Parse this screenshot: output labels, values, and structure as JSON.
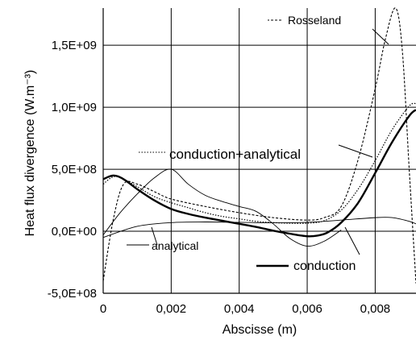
{
  "chart_data": {
    "type": "line",
    "xlabel": "Abscisse (m)",
    "ylabel": "Heat flux divergence (W.m⁻³)",
    "xlim": [
      0,
      0.0092
    ],
    "ylim": [
      -500000000,
      1800000000
    ],
    "x_ticks": [
      0,
      0.002,
      0.004,
      0.006,
      0.008
    ],
    "x_tick_labels": [
      "0",
      "0,002",
      "0,004",
      "0,006",
      "0,008"
    ],
    "y_ticks": [
      -500000000,
      0,
      500000000,
      1000000000,
      1500000000
    ],
    "y_tick_labels": [
      "-5,0E+08",
      "0,0E+00",
      "5,0E+08",
      "1,0E+09",
      "1,5E+09"
    ],
    "grid": true,
    "series": [
      {
        "name": "conduction",
        "style": "thick-solid",
        "x": [
          0,
          0.0003,
          0.0006,
          0.001,
          0.0015,
          0.002,
          0.0025,
          0.003,
          0.0035,
          0.004,
          0.0045,
          0.005,
          0.0055,
          0.006,
          0.0063,
          0.0066,
          0.007,
          0.0075,
          0.008,
          0.0085,
          0.009,
          0.0092
        ],
        "y": [
          420000000,
          450000000,
          420000000,
          340000000,
          250000000,
          180000000,
          140000000,
          110000000,
          85000000,
          60000000,
          35000000,
          5000000,
          -20000000,
          -40000000,
          -35000000,
          -10000000,
          70000000,
          230000000,
          470000000,
          720000000,
          930000000,
          980000000
        ]
      },
      {
        "name": "conduction+analytical",
        "style": "dotted",
        "x": [
          0,
          0.0003,
          0.0006,
          0.001,
          0.0015,
          0.002,
          0.0025,
          0.003,
          0.0035,
          0.004,
          0.0045,
          0.005,
          0.0055,
          0.006,
          0.0065,
          0.007,
          0.0075,
          0.008,
          0.0085,
          0.009,
          0.0092
        ],
        "y": [
          380000000,
          440000000,
          420000000,
          360000000,
          280000000,
          230000000,
          190000000,
          150000000,
          120000000,
          100000000,
          80000000,
          70000000,
          65000000,
          65000000,
          85000000,
          170000000,
          340000000,
          570000000,
          820000000,
          1010000000,
          1030000000
        ]
      },
      {
        "name": "analytical",
        "style": "thin-solid",
        "x": [
          0,
          0.001,
          0.002,
          0.003,
          0.004,
          0.005,
          0.006,
          0.007,
          0.008,
          0.0085,
          0.009,
          0.0092
        ],
        "y": [
          -50000000,
          40000000,
          70000000,
          75000000,
          72000000,
          68000000,
          72000000,
          90000000,
          110000000,
          110000000,
          80000000,
          60000000
        ]
      },
      {
        "name": "",
        "style": "thin-solid",
        "x": [
          0,
          0.0005,
          0.001,
          0.0015,
          0.002,
          0.0025,
          0.003,
          0.0035,
          0.004,
          0.0045,
          0.005,
          0.0055,
          0.006,
          0.0065,
          0.007
        ],
        "y": [
          -30000000,
          150000000,
          300000000,
          430000000,
          500000000,
          380000000,
          290000000,
          240000000,
          200000000,
          160000000,
          60000000,
          -60000000,
          -120000000,
          -80000000,
          10000000
        ]
      },
      {
        "name": "Rosseland",
        "style": "dashed",
        "x": [
          0,
          0.0003,
          0.0006,
          0.001,
          0.0015,
          0.002,
          0.003,
          0.004,
          0.005,
          0.006,
          0.0065,
          0.007,
          0.0075,
          0.008,
          0.0083,
          0.0086,
          0.0088,
          0.009,
          0.0092
        ],
        "y": [
          -400000000,
          100000000,
          380000000,
          380000000,
          320000000,
          260000000,
          200000000,
          150000000,
          110000000,
          90000000,
          110000000,
          200000000,
          580000000,
          1150000000,
          1550000000,
          1800000000,
          1450000000,
          500000000,
          -420000000
        ]
      }
    ],
    "annotations": [
      "Rosseland",
      "conduction+analytical",
      "analytical",
      "conduction"
    ]
  }
}
